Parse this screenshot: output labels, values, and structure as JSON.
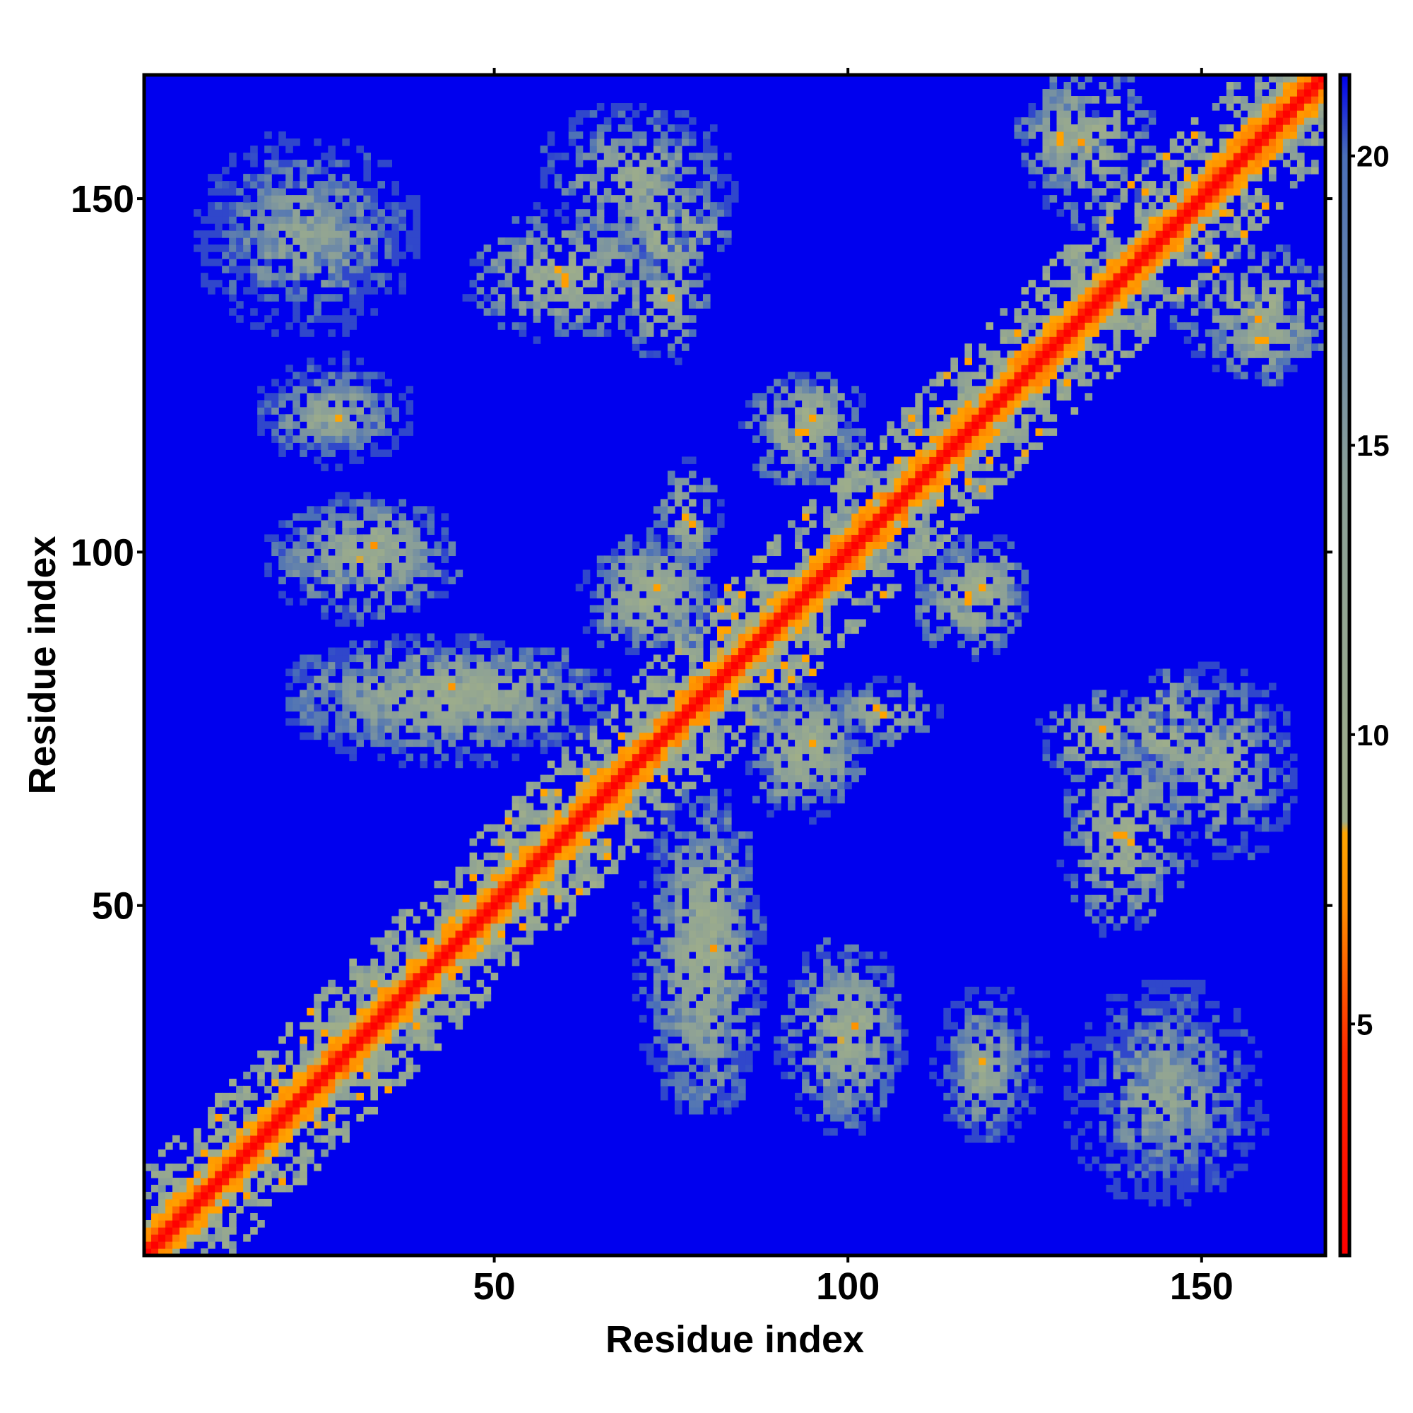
{
  "chart_data": {
    "type": "heatmap",
    "title": "",
    "xlabel": "Residue index",
    "ylabel": "Residue index",
    "x_range": [
      1,
      167
    ],
    "y_range": [
      1,
      167
    ],
    "x_ticks": [
      50,
      100,
      150
    ],
    "y_ticks": [
      50,
      100,
      150
    ],
    "x_tick_labels": [
      "50",
      "100",
      "150"
    ],
    "y_tick_labels": [
      "50",
      "100",
      "150"
    ],
    "symmetric": true,
    "colorbar": {
      "range": [
        1,
        21.4
      ],
      "ticks": [
        5,
        10,
        15,
        20
      ],
      "tick_labels": [
        "5",
        "10",
        "15",
        "20"
      ],
      "stops": [
        {
          "value": 1,
          "color": "#ff0000"
        },
        {
          "value": 4.5,
          "color": "#ff2a00"
        },
        {
          "value": 7,
          "color": "#ff8c00"
        },
        {
          "value": 8.3,
          "color": "#ffa500"
        },
        {
          "value": 8.5,
          "color": "#9fae8a"
        },
        {
          "value": 14.5,
          "color": "#8a9f98"
        },
        {
          "value": 20,
          "color": "#4a6fb8"
        },
        {
          "value": 21.4,
          "color": "#0000ee"
        }
      ]
    },
    "background_value": 21.4,
    "background_color": "#0000ee",
    "contact_regions": [
      {
        "description": "main diagonal (self distance)",
        "residues_i": [
          1,
          167
        ],
        "residues_j": [
          1,
          167
        ],
        "min_distance": 3.8,
        "diagonal_offsets": [
          0,
          4
        ]
      },
      {
        "description": "near-diagonal band",
        "residues_i": [
          1,
          167
        ],
        "residues_j": [
          1,
          167
        ],
        "min_distance": 8,
        "diagonal_offsets": [
          4,
          12
        ]
      },
      {
        "description": "cluster",
        "residues_i": [
          12,
          35
        ],
        "residues_j": [
          140,
          150
        ],
        "min_distance": 10
      },
      {
        "description": "cluster",
        "residues_i": [
          20,
          34
        ],
        "residues_j": [
          116,
          122
        ],
        "min_distance": 7
      },
      {
        "description": "cluster",
        "residues_i": [
          25,
          40
        ],
        "residues_j": [
          97,
          105
        ],
        "min_distance": 6
      },
      {
        "description": "cluster",
        "residues_i": [
          25,
          62
        ],
        "residues_j": [
          75,
          85
        ],
        "min_distance": 6
      },
      {
        "description": "cluster",
        "residues_i": [
          50,
          70
        ],
        "residues_j": [
          133,
          145
        ],
        "min_distance": 6
      },
      {
        "description": "cluster",
        "residues_i": [
          67,
          78
        ],
        "residues_j": [
          90,
          100
        ],
        "min_distance": 6
      },
      {
        "description": "cluster",
        "residues_i": [
          70,
          80
        ],
        "residues_j": [
          140,
          150
        ],
        "min_distance": 5
      },
      {
        "description": "cluster",
        "residues_i": [
          88,
          98
        ],
        "residues_j": [
          112,
          122
        ],
        "min_distance": 6
      },
      {
        "description": "cluster",
        "residues_i": [
          88,
          98
        ],
        "residues_j": [
          65,
          78
        ],
        "min_distance": 6
      },
      {
        "description": "cluster",
        "residues_i": [
          100,
          110
        ],
        "residues_j": [
          75,
          80
        ],
        "min_distance": 6
      },
      {
        "description": "cluster",
        "residues_i": [
          115,
          123
        ],
        "residues_j": [
          90,
          100
        ],
        "min_distance": 6
      },
      {
        "description": "cluster",
        "residues_i": [
          126,
          134
        ],
        "residues_j": [
          155,
          162
        ],
        "min_distance": 6
      },
      {
        "description": "cluster",
        "residues_i": [
          130,
          142
        ],
        "residues_j": [
          70,
          78
        ],
        "min_distance": 6
      },
      {
        "description": "cluster",
        "residues_i": [
          150,
          167
        ],
        "residues_j": [
          128,
          140
        ],
        "min_distance": 6
      },
      {
        "description": "cluster",
        "residues_i": [
          93,
          105
        ],
        "residues_j": [
          22,
          42
        ],
        "min_distance": 7
      },
      {
        "description": "cluster",
        "residues_i": [
          115,
          125
        ],
        "residues_j": [
          20,
          35
        ],
        "min_distance": 9
      },
      {
        "description": "cluster",
        "residues_i": [
          135,
          155
        ],
        "residues_j": [
          12,
          35
        ],
        "min_distance": 9
      },
      {
        "description": "cluster",
        "residues_i": [
          73,
          85
        ],
        "residues_j": [
          25,
          60
        ],
        "min_distance": 8
      },
      {
        "description": "cluster",
        "residues_i": [
          145,
          160
        ],
        "residues_j": [
          60,
          80
        ],
        "min_distance": 8
      }
    ]
  }
}
